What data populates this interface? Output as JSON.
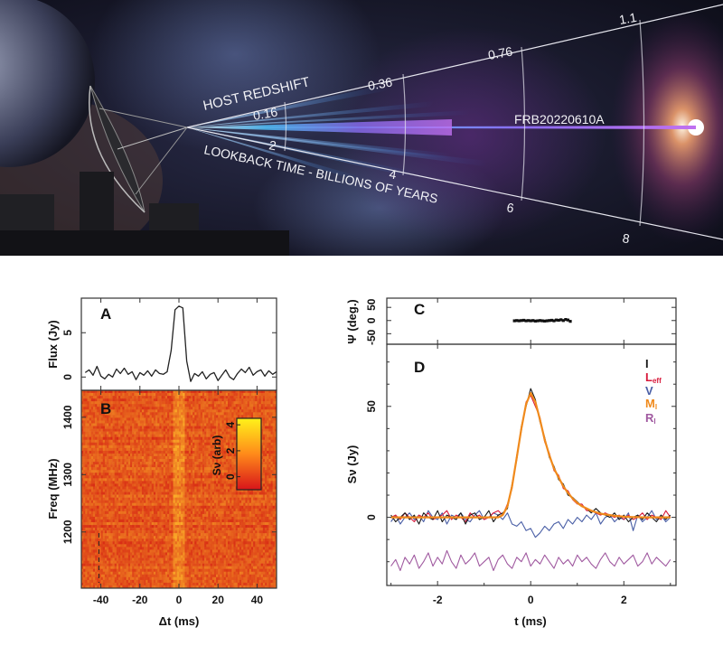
{
  "banner": {
    "redshift_label": "HOST REDSHIFT",
    "lookback_label": "LOOKBACK TIME - BILLIONS OF YEARS",
    "redshift_ticks": [
      "0.16",
      "0.36",
      "0.76",
      "1.1"
    ],
    "lookback_ticks": [
      "2",
      "4",
      "6",
      "8"
    ],
    "source_label": "FRB20220610A",
    "colors": {
      "sky": "#141626",
      "beam_blue": "#4fc3ff",
      "beam_purple": "#c070f0"
    }
  },
  "chart_data": [
    {
      "panel": "A",
      "type": "line",
      "ylabel": "Flux (Jy)",
      "xlim": [
        -50,
        50
      ],
      "ylim": [
        -1.5,
        8.9
      ],
      "yticks": [
        "0",
        "5"
      ],
      "x_start": -48,
      "x_step": 2,
      "values": [
        0.5,
        0.8,
        0.2,
        1.2,
        0.1,
        -0.2,
        0.3,
        0,
        0.9,
        0.4,
        1.0,
        0.3,
        0.6,
        -0.3,
        0.5,
        0.2,
        0.7,
        0.1,
        0.8,
        0.4,
        0.3,
        0.6,
        3.0,
        7.6,
        8.0,
        7.8,
        1.8,
        -0.5,
        0.4,
        0.1,
        0.6,
        -0.2,
        0.3,
        0.5,
        -0.4,
        0.2,
        0.8,
        0.0,
        -0.3,
        0.4,
        0.9,
        0.5,
        1.1,
        0.2,
        0.6,
        0.8,
        0.1,
        0.7,
        0.3,
        0.6
      ],
      "color": "#222222"
    },
    {
      "panel": "B",
      "type": "heatmap",
      "xlabel": "Δt (ms)",
      "ylabel": "Freq (MHz)",
      "xlim": [
        -50,
        50
      ],
      "ylim": [
        1102,
        1447
      ],
      "xticks": [
        "-40",
        "-20",
        "0",
        "20",
        "40"
      ],
      "yticks": [
        "1200",
        "1300",
        "1400"
      ],
      "burst_center_ms": 0,
      "colorbar": {
        "label": "Sν (arb)",
        "range": [
          -1,
          4.5
        ],
        "ticks": [
          "0",
          "2",
          "4"
        ],
        "colors": [
          "#d8141a",
          "#ff8a1a",
          "#fff21a"
        ]
      }
    },
    {
      "panel": "C",
      "type": "scatter",
      "ylabel": "Ψ (deg.)",
      "xlim": [
        -3.09,
        3.12
      ],
      "ylim": [
        -90,
        85
      ],
      "yticks": [
        "-50",
        "0",
        "50"
      ],
      "x_start": -0.35,
      "x_step": 0.05,
      "values": [
        -1,
        0,
        -1,
        0,
        1,
        -1,
        0,
        -1,
        0,
        -2,
        -1,
        0,
        -1,
        -2,
        -1,
        0,
        1,
        -1,
        2,
        1,
        3,
        0,
        4,
        2,
        -3
      ]
    },
    {
      "panel": "D",
      "type": "line",
      "xlabel": "t (ms)",
      "ylabel": "Sν (Jy)",
      "xlim": [
        -3.09,
        3.12
      ],
      "ylim": [
        -30.7,
        78
      ],
      "xticks": [
        "-2",
        "0",
        "2"
      ],
      "yticks": [
        "0",
        "50"
      ],
      "x_start": -3.0,
      "x_step": 0.1,
      "legend_position": "top-right",
      "series": [
        {
          "name": "I",
          "color": "#1a1a1a",
          "values": [
            1,
            -2,
            0,
            2,
            -1,
            1,
            -3,
            2,
            0,
            -1,
            3,
            -2,
            1,
            0,
            -1,
            2,
            -3,
            1,
            2,
            -1,
            0,
            3,
            -2,
            1,
            2,
            4,
            15,
            26,
            41,
            50,
            58,
            53,
            43,
            36,
            27,
            23,
            17,
            15,
            10,
            9,
            7,
            5,
            4,
            2,
            4,
            2,
            1,
            0,
            2,
            -1,
            1,
            -2,
            0,
            1,
            -1,
            2,
            0,
            -2,
            1,
            -1,
            1
          ]
        },
        {
          "name": "L",
          "sub": "eff",
          "color": "#d81b3c",
          "values": [
            0,
            1,
            -1,
            2,
            0,
            -2,
            1,
            0,
            2,
            -1,
            0,
            1,
            3,
            -1,
            1,
            0,
            -2,
            2,
            0,
            1,
            -1,
            0,
            2,
            3,
            1,
            6,
            13,
            28,
            39,
            52,
            55,
            50,
            45,
            34,
            29,
            21,
            19,
            13,
            12,
            8,
            6,
            6,
            3,
            3,
            2,
            1,
            2,
            1,
            0,
            1,
            -1,
            1,
            -1,
            0,
            2,
            -1,
            1,
            0,
            -1,
            3,
            0
          ]
        },
        {
          "name": "V",
          "color": "#4a5fa6",
          "values": [
            -2,
            1,
            -3,
            0,
            2,
            -1,
            1,
            -2,
            3,
            0,
            -1,
            2,
            -3,
            1,
            0,
            2,
            -1,
            -2,
            1,
            3,
            -1,
            0,
            2,
            1,
            -1,
            2,
            -3,
            -4,
            -2,
            -6,
            -5,
            -9,
            -7,
            -4,
            -6,
            -3,
            -2,
            -5,
            -1,
            -3,
            0,
            -2,
            1,
            -1,
            2,
            -3,
            0,
            1,
            -2,
            0,
            -1,
            2,
            -6,
            1,
            -2,
            0,
            3,
            -1,
            1,
            -2,
            0
          ]
        },
        {
          "name": "M",
          "sub": "I",
          "color": "#f08a1c",
          "values": [
            0,
            0,
            0,
            0,
            0,
            0,
            0,
            0,
            0,
            0,
            0,
            0,
            0,
            0,
            0,
            0,
            0,
            0,
            0,
            0,
            0,
            0,
            0,
            0,
            1,
            5,
            14,
            27,
            40,
            51,
            56,
            52,
            44,
            35,
            28,
            22,
            18,
            14,
            11,
            8.5,
            6.5,
            5,
            4,
            3,
            2.3,
            1.7,
            1.3,
            1,
            0.7,
            0.5,
            0.3,
            0.2,
            0.1,
            0.1,
            0,
            0,
            0,
            0,
            0,
            0,
            0
          ]
        },
        {
          "name": "R",
          "sub": "I",
          "color": "#a05aa0",
          "values": [
            -22,
            -19,
            -24,
            -18,
            -21,
            -17,
            -23,
            -20,
            -16,
            -22,
            -18,
            -21,
            -15,
            -20,
            -23,
            -17,
            -21,
            -19,
            -16,
            -22,
            -20,
            -18,
            -24,
            -19,
            -17,
            -21,
            -23,
            -18,
            -20,
            -16,
            -22,
            -19,
            -21,
            -17,
            -20,
            -23,
            -18,
            -21,
            -19,
            -22,
            -17,
            -20,
            -18,
            -21,
            -23,
            -19,
            -16,
            -20,
            -22,
            -18,
            -21,
            -19,
            -17,
            -22,
            -20,
            -16,
            -21,
            -18,
            -20,
            -22,
            -19
          ]
        }
      ]
    }
  ],
  "panel_letters": {
    "a": "A",
    "b": "B",
    "c": "C",
    "d": "D"
  }
}
